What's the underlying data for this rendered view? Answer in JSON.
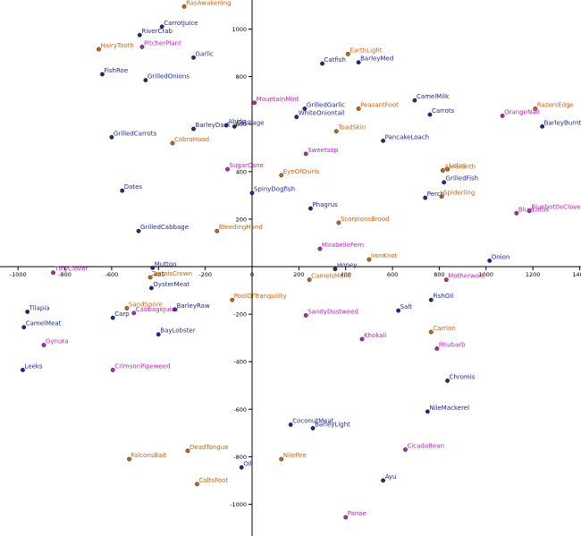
{
  "chart_data": {
    "type": "scatter",
    "title": "",
    "xlabel": "",
    "ylabel": "",
    "xlim": [
      -1050,
      1400
    ],
    "ylim": [
      -1130,
      1130
    ],
    "grid": false,
    "x_ticks": [
      -1000,
      -800,
      -600,
      -400,
      -200,
      0,
      200,
      400,
      600,
      800,
      1000,
      1200,
      1400
    ],
    "y_ticks": [
      1000,
      800,
      600,
      400,
      200,
      -200,
      -400,
      -600,
      -800,
      -1000
    ],
    "colors": {
      "blue": "#1f2a8c",
      "orange": "#c86414",
      "magenta": "#b428b4"
    },
    "points": [
      {
        "label": "RasAwakening",
        "x": -290,
        "y": 1095,
        "color": "orange"
      },
      {
        "label": "CarrotJuice",
        "x": -385,
        "y": 1010,
        "color": "blue"
      },
      {
        "label": "RiverCrab",
        "x": -480,
        "y": 975,
        "color": "blue"
      },
      {
        "label": "PitcherPlant",
        "x": -470,
        "y": 925,
        "color": "magenta"
      },
      {
        "label": "HairyTooth",
        "x": -655,
        "y": 915,
        "color": "orange"
      },
      {
        "label": "Garlic",
        "x": -250,
        "y": 880,
        "color": "blue"
      },
      {
        "label": "FishRoe",
        "x": -640,
        "y": 810,
        "color": "blue"
      },
      {
        "label": "GrilledOnions",
        "x": -455,
        "y": 785,
        "color": "blue"
      },
      {
        "label": "EarthLight",
        "x": 410,
        "y": 895,
        "color": "orange"
      },
      {
        "label": "Catfish",
        "x": 300,
        "y": 855,
        "color": "blue"
      },
      {
        "label": "BarleyMed",
        "x": 455,
        "y": 860,
        "color": "blue"
      },
      {
        "label": "MountainMint",
        "x": 10,
        "y": 690,
        "color": "magenta"
      },
      {
        "label": "GrilledGarlic",
        "x": 225,
        "y": 665,
        "color": "blue"
      },
      {
        "label": "WhiteOniontail",
        "x": 190,
        "y": 630,
        "color": "blue"
      },
      {
        "label": "PeasantFoot",
        "x": 455,
        "y": 665,
        "color": "orange"
      },
      {
        "label": "CamelMilk",
        "x": 695,
        "y": 700,
        "color": "blue"
      },
      {
        "label": "Carrots",
        "x": 760,
        "y": 640,
        "color": "blue"
      },
      {
        "label": "RazorsEdge",
        "x": 1210,
        "y": 665,
        "color": "orange"
      },
      {
        "label": "OrangeNali",
        "x": 1070,
        "y": 635,
        "color": "magenta"
      },
      {
        "label": "BarleyBurnt",
        "x": 1240,
        "y": 590,
        "color": "blue"
      },
      {
        "label": "GrilledCarrots",
        "x": -600,
        "y": 545,
        "color": "blue"
      },
      {
        "label": "BarleyDark",
        "x": -250,
        "y": 580,
        "color": "blue"
      },
      {
        "label": "Abido",
        "x": -110,
        "y": 595,
        "color": "blue"
      },
      {
        "label": "Cabbage",
        "x": -75,
        "y": 590,
        "color": "blue"
      },
      {
        "label": "CobraHood",
        "x": -340,
        "y": 520,
        "color": "orange"
      },
      {
        "label": "ToadSkin",
        "x": 360,
        "y": 570,
        "color": "orange"
      },
      {
        "label": "PancakeLoach",
        "x": 560,
        "y": 530,
        "color": "blue"
      },
      {
        "label": "Sweetsop",
        "x": 230,
        "y": 475,
        "color": "magenta"
      },
      {
        "label": "SugarCane",
        "x": -105,
        "y": 410,
        "color": "magenta"
      },
      {
        "label": "EyeOfOsiris",
        "x": 125,
        "y": 385,
        "color": "orange"
      },
      {
        "label": "Amaranth",
        "x": 815,
        "y": 405,
        "color": "orange"
      },
      {
        "label": "Lotus",
        "x": 835,
        "y": 410,
        "color": "orange"
      },
      {
        "label": "GrilledFish",
        "x": 820,
        "y": 355,
        "color": "blue"
      },
      {
        "label": "Dates",
        "x": -555,
        "y": 320,
        "color": "blue"
      },
      {
        "label": "SpinyDogfish",
        "x": 0,
        "y": 310,
        "color": "blue"
      },
      {
        "label": "Perch",
        "x": 740,
        "y": 290,
        "color": "blue"
      },
      {
        "label": "Spiderling",
        "x": 810,
        "y": 295,
        "color": "orange"
      },
      {
        "label": "Phagrus",
        "x": 250,
        "y": 245,
        "color": "blue"
      },
      {
        "label": "BlueLotus",
        "x": 1130,
        "y": 225,
        "color": "magenta"
      },
      {
        "label": "BluebottleClover",
        "x": 1185,
        "y": 235,
        "color": "magenta"
      },
      {
        "label": "ScorpionsBrood",
        "x": 370,
        "y": 185,
        "color": "orange"
      },
      {
        "label": "GrilledCabbage",
        "x": -485,
        "y": 150,
        "color": "blue"
      },
      {
        "label": "BleedingHand",
        "x": -150,
        "y": 150,
        "color": "orange"
      },
      {
        "label": "MirabelleFern",
        "x": 290,
        "y": 75,
        "color": "magenta"
      },
      {
        "label": "IronKnot",
        "x": 500,
        "y": 30,
        "color": "orange"
      },
      {
        "label": "Onion",
        "x": 1015,
        "y": 25,
        "color": "blue"
      },
      {
        "label": "Mutton",
        "x": -425,
        "y": -5,
        "color": "blue"
      },
      {
        "label": "Honey",
        "x": 355,
        "y": -10,
        "color": "blue"
      },
      {
        "label": "TinyClover",
        "x": -850,
        "y": -25,
        "color": "magenta"
      },
      {
        "label": "TortoisCrown",
        "x": -435,
        "y": -45,
        "color": "orange"
      },
      {
        "label": "CamelsMane",
        "x": 245,
        "y": -55,
        "color": "orange"
      },
      {
        "label": "Motherwort",
        "x": 830,
        "y": -55,
        "color": "magenta"
      },
      {
        "label": "OysterMeat",
        "x": -430,
        "y": -90,
        "color": "blue"
      },
      {
        "label": "PoolOfTranquility",
        "x": -85,
        "y": -140,
        "color": "orange"
      },
      {
        "label": "FishOil",
        "x": 765,
        "y": -140,
        "color": "blue"
      },
      {
        "label": "Tilapia",
        "x": -960,
        "y": -190,
        "color": "blue"
      },
      {
        "label": "SandSpore",
        "x": -535,
        "y": -175,
        "color": "orange"
      },
      {
        "label": "CabbageJuice",
        "x": -505,
        "y": -195,
        "color": "magenta"
      },
      {
        "label": "Carp",
        "x": -595,
        "y": -215,
        "color": "blue"
      },
      {
        "label": "BarleyRaw",
        "x": -330,
        "y": -180,
        "color": "blue"
      },
      {
        "label": "SandyDustweed",
        "x": 230,
        "y": -205,
        "color": "magenta"
      },
      {
        "label": "Salt",
        "x": 625,
        "y": -185,
        "color": "blue"
      },
      {
        "label": "CamelMeat",
        "x": -975,
        "y": -255,
        "color": "blue"
      },
      {
        "label": "Carrion",
        "x": 765,
        "y": -275,
        "color": "orange"
      },
      {
        "label": "BayLobster",
        "x": -400,
        "y": -285,
        "color": "blue"
      },
      {
        "label": "Khokali",
        "x": 470,
        "y": -305,
        "color": "magenta"
      },
      {
        "label": "Gynura",
        "x": -890,
        "y": -330,
        "color": "magenta"
      },
      {
        "label": "Rhubarb",
        "x": 790,
        "y": -345,
        "color": "magenta"
      },
      {
        "label": "Leeks",
        "x": -980,
        "y": -435,
        "color": "blue"
      },
      {
        "label": "CrimsonPipeweed",
        "x": -595,
        "y": -435,
        "color": "magenta"
      },
      {
        "label": "Chromis",
        "x": 835,
        "y": -480,
        "color": "blue"
      },
      {
        "label": "NileMackerel",
        "x": 750,
        "y": -610,
        "color": "blue"
      },
      {
        "label": "CoconutMeat",
        "x": 165,
        "y": -665,
        "color": "blue"
      },
      {
        "label": "BarleyLight",
        "x": 260,
        "y": -680,
        "color": "blue"
      },
      {
        "label": "DeadTongue",
        "x": -275,
        "y": -775,
        "color": "orange"
      },
      {
        "label": "CicadaBean",
        "x": 655,
        "y": -770,
        "color": "magenta"
      },
      {
        "label": "FalconsBait",
        "x": -525,
        "y": -810,
        "color": "orange"
      },
      {
        "label": "NileFire",
        "x": 125,
        "y": -810,
        "color": "orange"
      },
      {
        "label": "Oil",
        "x": -45,
        "y": -845,
        "color": "blue"
      },
      {
        "label": "Ayu",
        "x": 560,
        "y": -900,
        "color": "blue"
      },
      {
        "label": "ColtsFoot",
        "x": -235,
        "y": -915,
        "color": "orange"
      },
      {
        "label": "Panoe",
        "x": 400,
        "y": -1055,
        "color": "magenta"
      }
    ]
  }
}
